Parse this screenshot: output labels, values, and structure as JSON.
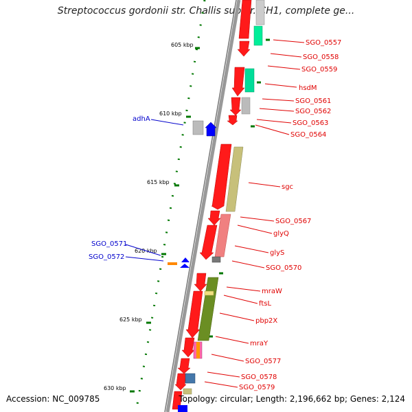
{
  "title": "Streptococcus gordonii str. Challis substr. CH1, complete ge...",
  "footer": {
    "accession": "Accession: NC_009785",
    "summary": "Topology: circular; Length: 2,196,662 bp; Genes: 2,124"
  },
  "scale_labels": [
    "605 kbp",
    "610 kbp",
    "615 kbp",
    "620 kbp",
    "625 kbp",
    "630 kbp"
  ],
  "forward_gene_labels": [
    "SGO_0557",
    "SGO_0558",
    "SGO_0559",
    "hsdM",
    "SGO_0561",
    "SGO_0562",
    "SGO_0563",
    "SGO_0564",
    "sgc",
    "SGO_0567",
    "glyQ",
    "glyS",
    "SGO_0570",
    "mraW",
    "ftsL",
    "pbp2X",
    "mraY",
    "SGO_0577",
    "SGO_0578",
    "SGO_0579"
  ],
  "reverse_gene_labels": [
    "adhA",
    "SGO_0571",
    "SGO_0572"
  ],
  "colors": {
    "forward_strand": "#ff0000",
    "reverse_strand": "#0000ff",
    "forward_label": "#e00000",
    "reverse_label": "#0000cc",
    "ruler_tick": "#007700"
  }
}
